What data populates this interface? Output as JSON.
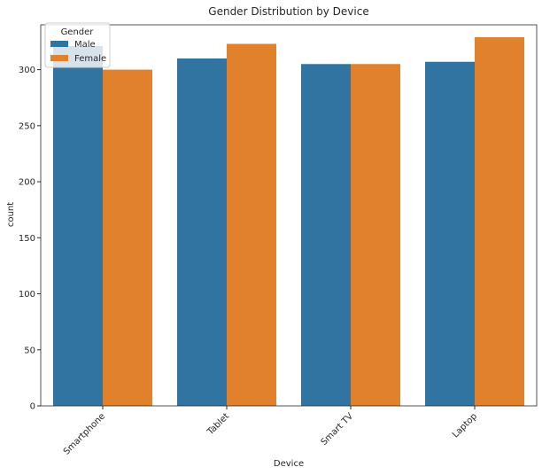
{
  "chart_data": {
    "type": "bar",
    "title": "Gender Distribution by Device",
    "xlabel": "Device",
    "ylabel": "count",
    "categories": [
      "Smartphone",
      "Tablet",
      "Smart TV",
      "Laptop"
    ],
    "series": [
      {
        "name": "Male",
        "values": [
          321,
          310,
          305,
          307
        ],
        "color": "#3274a1"
      },
      {
        "name": "Female",
        "values": [
          300,
          323,
          305,
          329
        ],
        "color": "#e1812c"
      }
    ],
    "ylim": [
      0,
      340
    ],
    "yticks": [
      0,
      50,
      100,
      150,
      200,
      250,
      300
    ],
    "legend": {
      "title": "Gender",
      "placement": "top-left"
    },
    "grid": false
  }
}
